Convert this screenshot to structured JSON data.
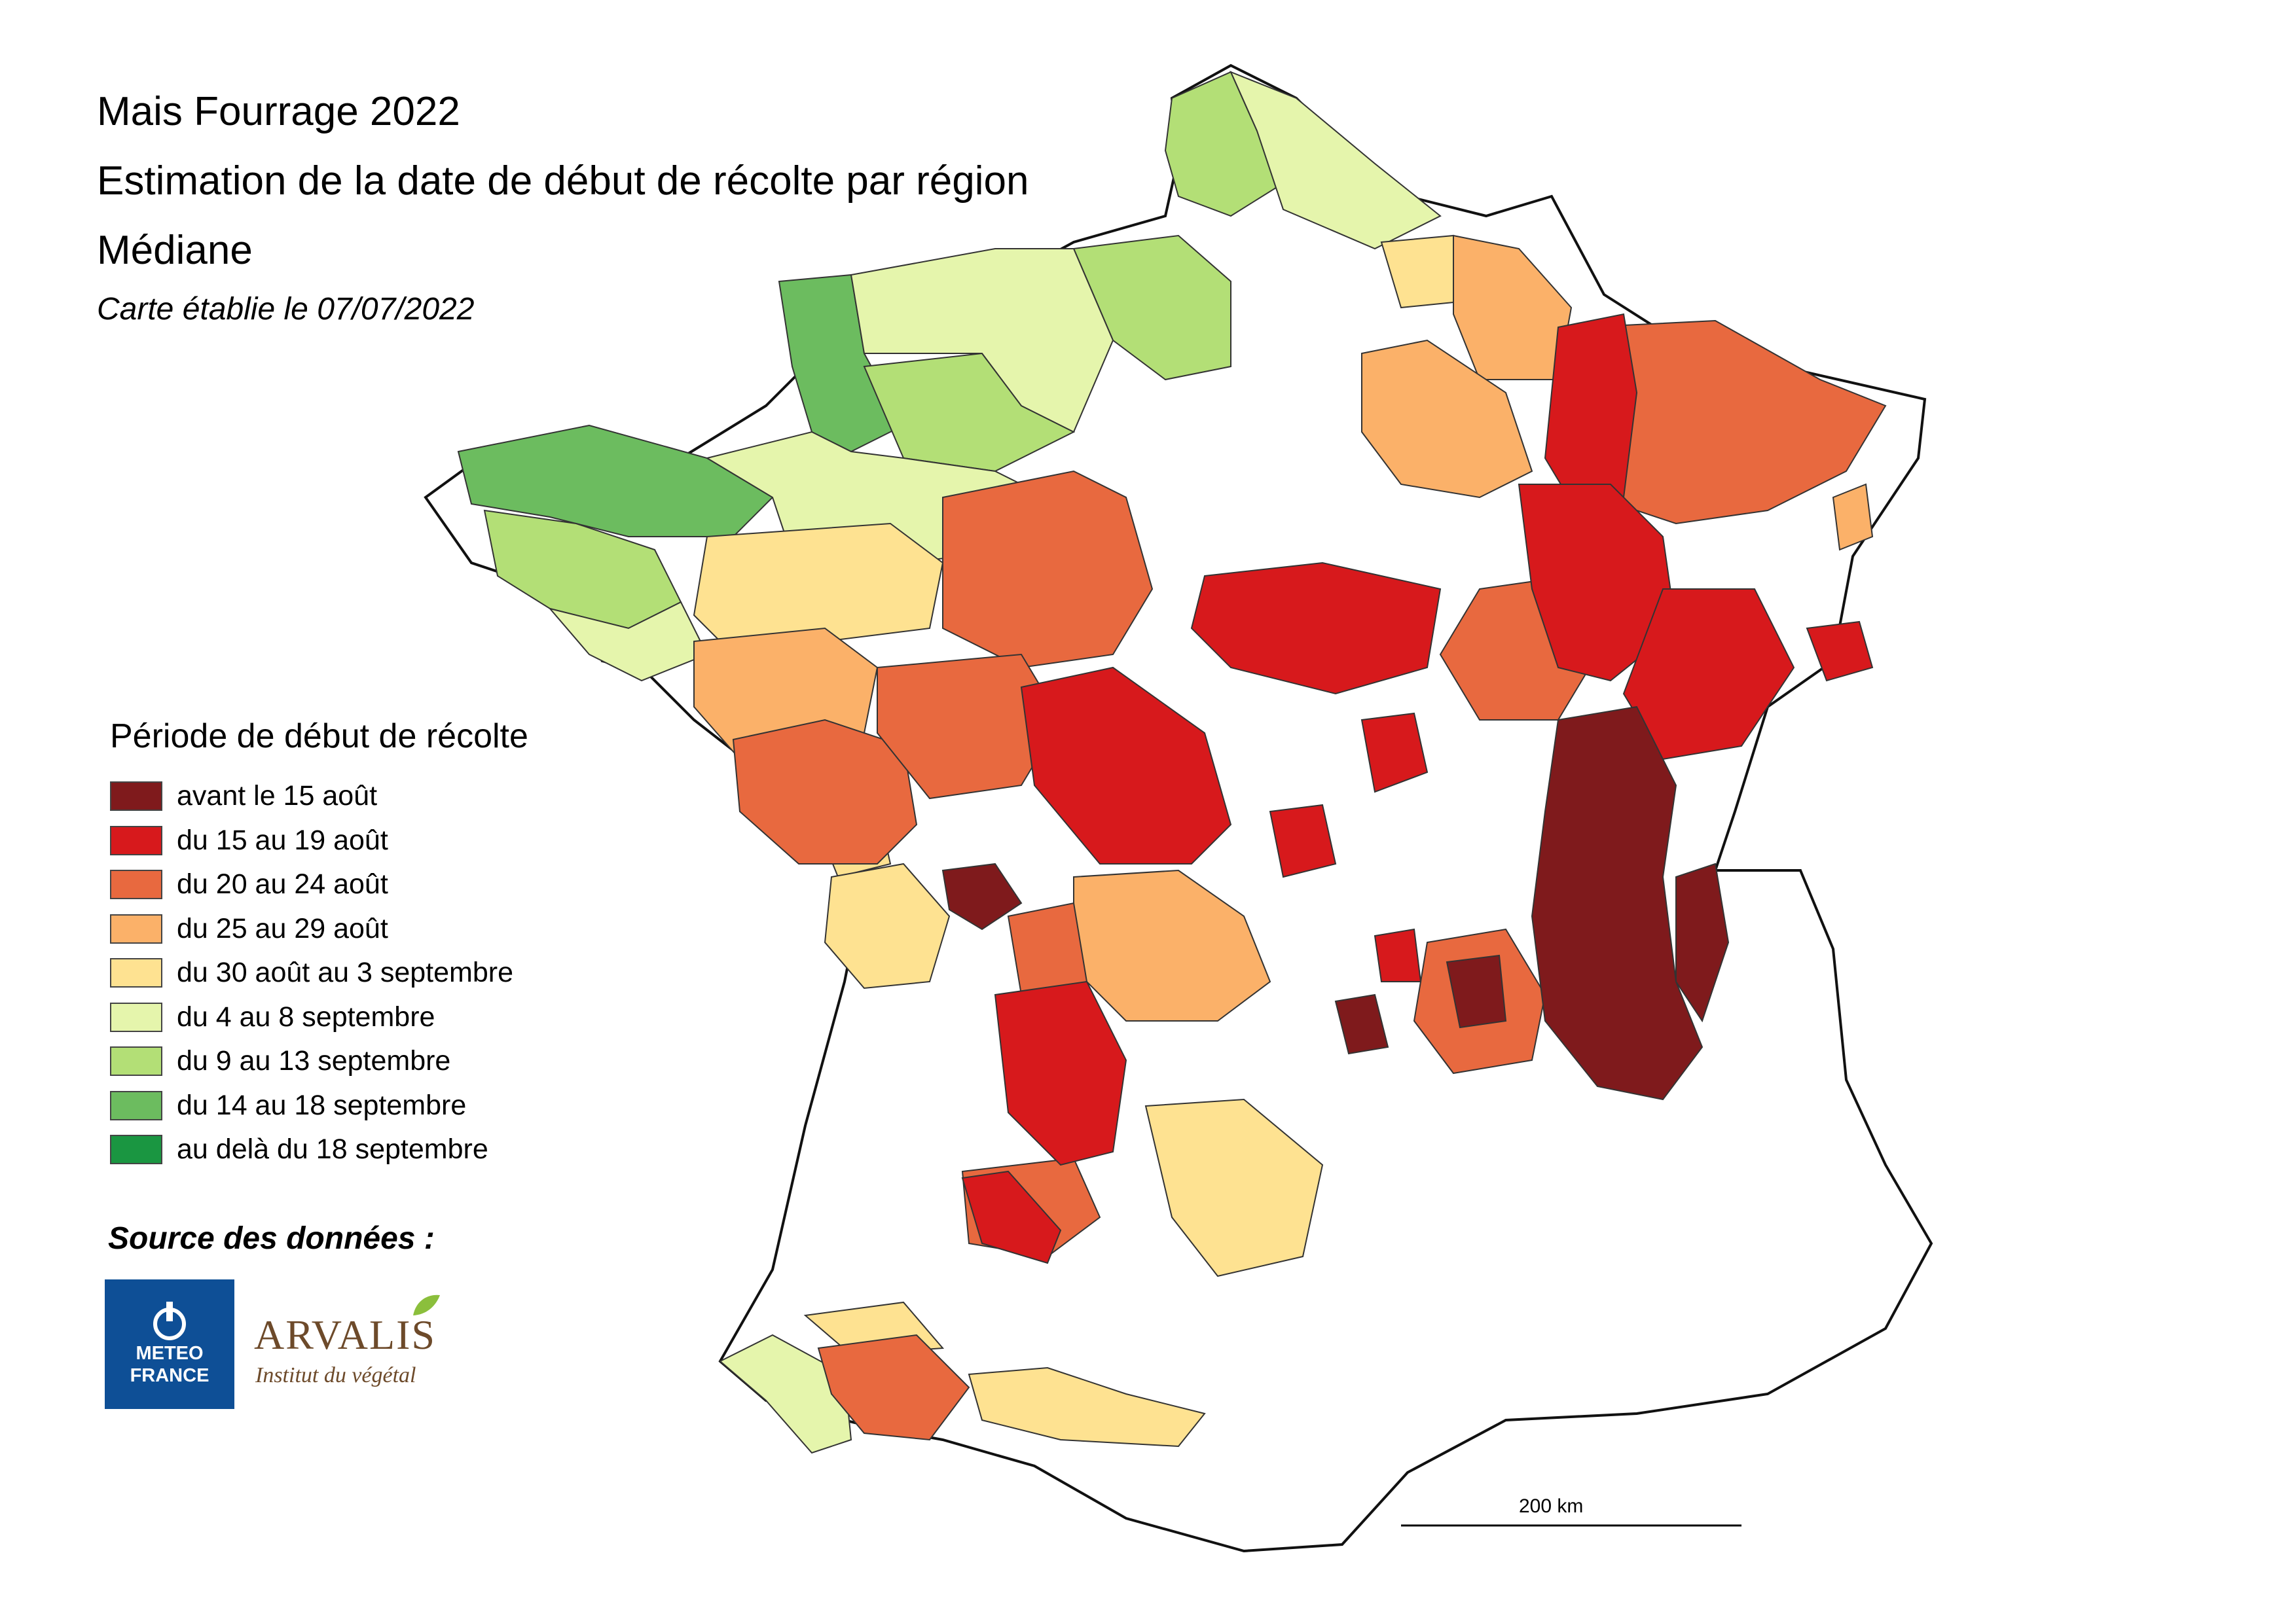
{
  "title": {
    "line1": "Mais Fourrage 2022",
    "line2": "Estimation de la date de début de récolte par région",
    "line3": "Médiane"
  },
  "map_date": "Carte établie le 07/07/2022",
  "legend": {
    "title": "Période de début de récolte",
    "items": [
      {
        "label": "avant le 15 août",
        "color": "#7f1a1c"
      },
      {
        "label": "du 15 au 19 août",
        "color": "#d7191c"
      },
      {
        "label": "du 20 au 24 août",
        "color": "#e8693f"
      },
      {
        "label": "du 25 au 29 août",
        "color": "#fbb169"
      },
      {
        "label": "du 30 août au 3 septembre",
        "color": "#fee291"
      },
      {
        "label": "du 4 au 8 septembre",
        "color": "#e5f5ac"
      },
      {
        "label": "du 9 au 13 septembre",
        "color": "#b3df76"
      },
      {
        "label": "du 14 au 18 septembre",
        "color": "#6cbc5f"
      },
      {
        "label": "au delà du 18 septembre",
        "color": "#1a9641"
      }
    ]
  },
  "no_data_color": "#ffffff",
  "source_label": "Source des données :",
  "logos": {
    "meteo_france": {
      "line1": "METEO",
      "line2": "FRANCE",
      "color": "#0e4f96"
    },
    "arvalis": {
      "name": "ARVALIS",
      "subtitle": "Institut du végétal",
      "color": "#6d4a2a"
    }
  },
  "scale_bar": {
    "label": "200 km"
  }
}
